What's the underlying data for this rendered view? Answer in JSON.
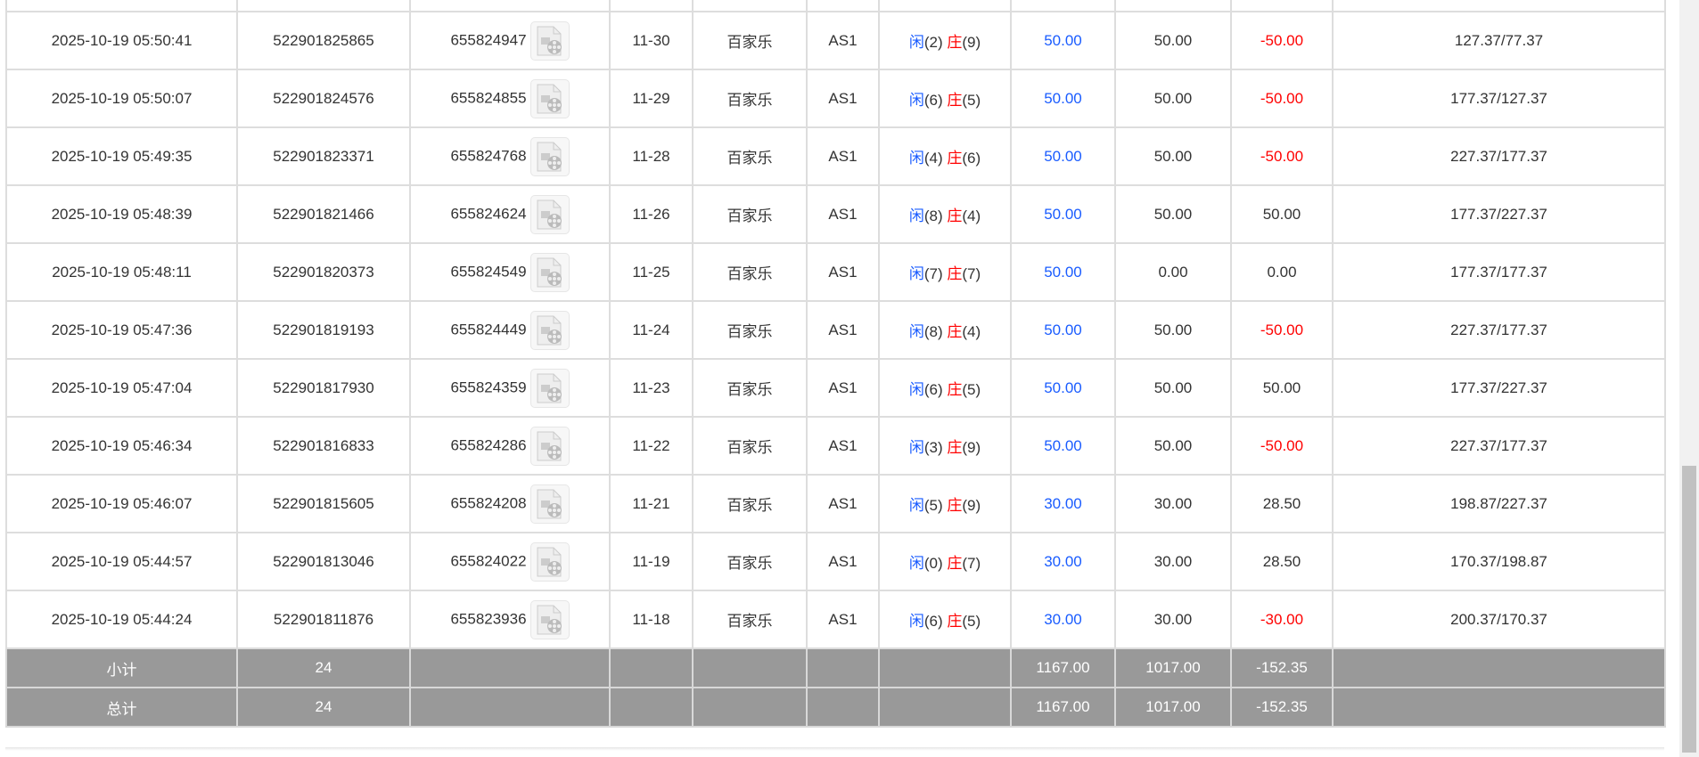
{
  "rows": [
    {
      "time": "2025-10-19 05:50:41",
      "order": "522901825865",
      "game_id": "655824947",
      "round": "11-30",
      "game": "百家乐",
      "table": "AS1",
      "player": "(2)",
      "banker": "(9)",
      "bet": "50.00",
      "valid": "50.00",
      "win": "-50.00",
      "win_color": "red",
      "balance": "127.37/77.37"
    },
    {
      "time": "2025-10-19 05:50:07",
      "order": "522901824576",
      "game_id": "655824855",
      "round": "11-29",
      "game": "百家乐",
      "table": "AS1",
      "player": "(6)",
      "banker": "(5)",
      "bet": "50.00",
      "valid": "50.00",
      "win": "-50.00",
      "win_color": "red",
      "balance": "177.37/127.37"
    },
    {
      "time": "2025-10-19 05:49:35",
      "order": "522901823371",
      "game_id": "655824768",
      "round": "11-28",
      "game": "百家乐",
      "table": "AS1",
      "player": "(4)",
      "banker": "(6)",
      "bet": "50.00",
      "valid": "50.00",
      "win": "-50.00",
      "win_color": "red",
      "balance": "227.37/177.37"
    },
    {
      "time": "2025-10-19 05:48:39",
      "order": "522901821466",
      "game_id": "655824624",
      "round": "11-26",
      "game": "百家乐",
      "table": "AS1",
      "player": "(8)",
      "banker": "(4)",
      "bet": "50.00",
      "valid": "50.00",
      "win": "50.00",
      "win_color": "normal",
      "balance": "177.37/227.37"
    },
    {
      "time": "2025-10-19 05:48:11",
      "order": "522901820373",
      "game_id": "655824549",
      "round": "11-25",
      "game": "百家乐",
      "table": "AS1",
      "player": "(7)",
      "banker": "(7)",
      "bet": "50.00",
      "valid": "0.00",
      "win": "0.00",
      "win_color": "normal",
      "balance": "177.37/177.37"
    },
    {
      "time": "2025-10-19 05:47:36",
      "order": "522901819193",
      "game_id": "655824449",
      "round": "11-24",
      "game": "百家乐",
      "table": "AS1",
      "player": "(8)",
      "banker": "(4)",
      "bet": "50.00",
      "valid": "50.00",
      "win": "-50.00",
      "win_color": "red",
      "balance": "227.37/177.37"
    },
    {
      "time": "2025-10-19 05:47:04",
      "order": "522901817930",
      "game_id": "655824359",
      "round": "11-23",
      "game": "百家乐",
      "table": "AS1",
      "player": "(6)",
      "banker": "(5)",
      "bet": "50.00",
      "valid": "50.00",
      "win": "50.00",
      "win_color": "normal",
      "balance": "177.37/227.37"
    },
    {
      "time": "2025-10-19 05:46:34",
      "order": "522901816833",
      "game_id": "655824286",
      "round": "11-22",
      "game": "百家乐",
      "table": "AS1",
      "player": "(3)",
      "banker": "(9)",
      "bet": "50.00",
      "valid": "50.00",
      "win": "-50.00",
      "win_color": "red",
      "balance": "227.37/177.37"
    },
    {
      "time": "2025-10-19 05:46:07",
      "order": "522901815605",
      "game_id": "655824208",
      "round": "11-21",
      "game": "百家乐",
      "table": "AS1",
      "player": "(5)",
      "banker": "(9)",
      "bet": "30.00",
      "valid": "30.00",
      "win": "28.50",
      "win_color": "normal",
      "balance": "198.87/227.37"
    },
    {
      "time": "2025-10-19 05:44:57",
      "order": "522901813046",
      "game_id": "655824022",
      "round": "11-19",
      "game": "百家乐",
      "table": "AS1",
      "player": "(0)",
      "banker": "(7)",
      "bet": "30.00",
      "valid": "30.00",
      "win": "28.50",
      "win_color": "normal",
      "balance": "170.37/198.87"
    },
    {
      "time": "2025-10-19 05:44:24",
      "order": "522901811876",
      "game_id": "655823936",
      "round": "11-18",
      "game": "百家乐",
      "table": "AS1",
      "player": "(6)",
      "banker": "(5)",
      "bet": "30.00",
      "valid": "30.00",
      "win": "-30.00",
      "win_color": "red",
      "balance": "200.37/170.37"
    }
  ],
  "labels": {
    "player": "闲",
    "banker": "庄"
  },
  "summary": [
    {
      "label": "小计",
      "count": "24",
      "bet": "1167.00",
      "valid": "1017.00",
      "win": "-152.35"
    },
    {
      "label": "总计",
      "count": "24",
      "bet": "1167.00",
      "valid": "1017.00",
      "win": "-152.35"
    }
  ],
  "colors": {
    "player": "#1a5cff",
    "banker": "#ff0000",
    "loss": "#ff0000",
    "summary_bg": "#999999"
  },
  "icons": {
    "replay": "video-file-icon"
  }
}
